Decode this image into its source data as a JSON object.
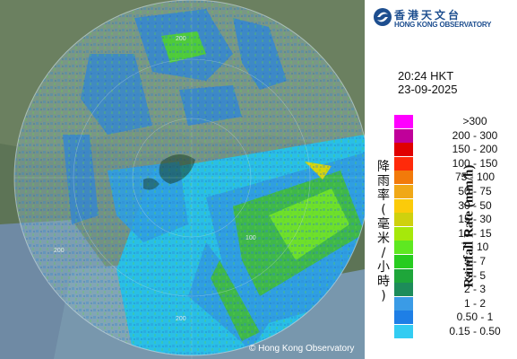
{
  "header": {
    "logo_zh": "香港天文台",
    "logo_en": "HONG KONG OBSERVATORY"
  },
  "timestamp": {
    "time": "20:24 HKT",
    "date": "23-09-2025"
  },
  "legend": {
    "title_en": "Rainfall Rate (mm/h)",
    "title_zh": "降雨率(毫米/小時)",
    "items": [
      {
        "label": ">300",
        "color": "#ff00ff"
      },
      {
        "label": "200 - 300",
        "color": "#c0009a"
      },
      {
        "label": "150 - 200",
        "color": "#e00000"
      },
      {
        "label": "100 - 150",
        "color": "#ff2a0a"
      },
      {
        "label": "75 - 100",
        "color": "#f27a0a"
      },
      {
        "label": "50 - 75",
        "color": "#f0a817"
      },
      {
        "label": "30 - 50",
        "color": "#fbcb0a"
      },
      {
        "label": "15 - 30",
        "color": "#cfd10e"
      },
      {
        "label": "10 - 15",
        "color": "#a6e80a"
      },
      {
        "label": "7 - 10",
        "color": "#5ee821"
      },
      {
        "label": "5 - 7",
        "color": "#27cc1f"
      },
      {
        "label": "3 - 5",
        "color": "#1ea63a"
      },
      {
        "label": "2 - 3",
        "color": "#1d8c5a"
      },
      {
        "label": "1 - 2",
        "color": "#3a9be6"
      },
      {
        "label": "0.50 - 1",
        "color": "#1e7fe6"
      },
      {
        "label": "0.15 - 0.50",
        "color": "#33ccf2"
      }
    ]
  },
  "map": {
    "range_labels": [
      "200",
      "200",
      "100",
      "200"
    ],
    "copyright": "© Hong Kong Observatory"
  }
}
